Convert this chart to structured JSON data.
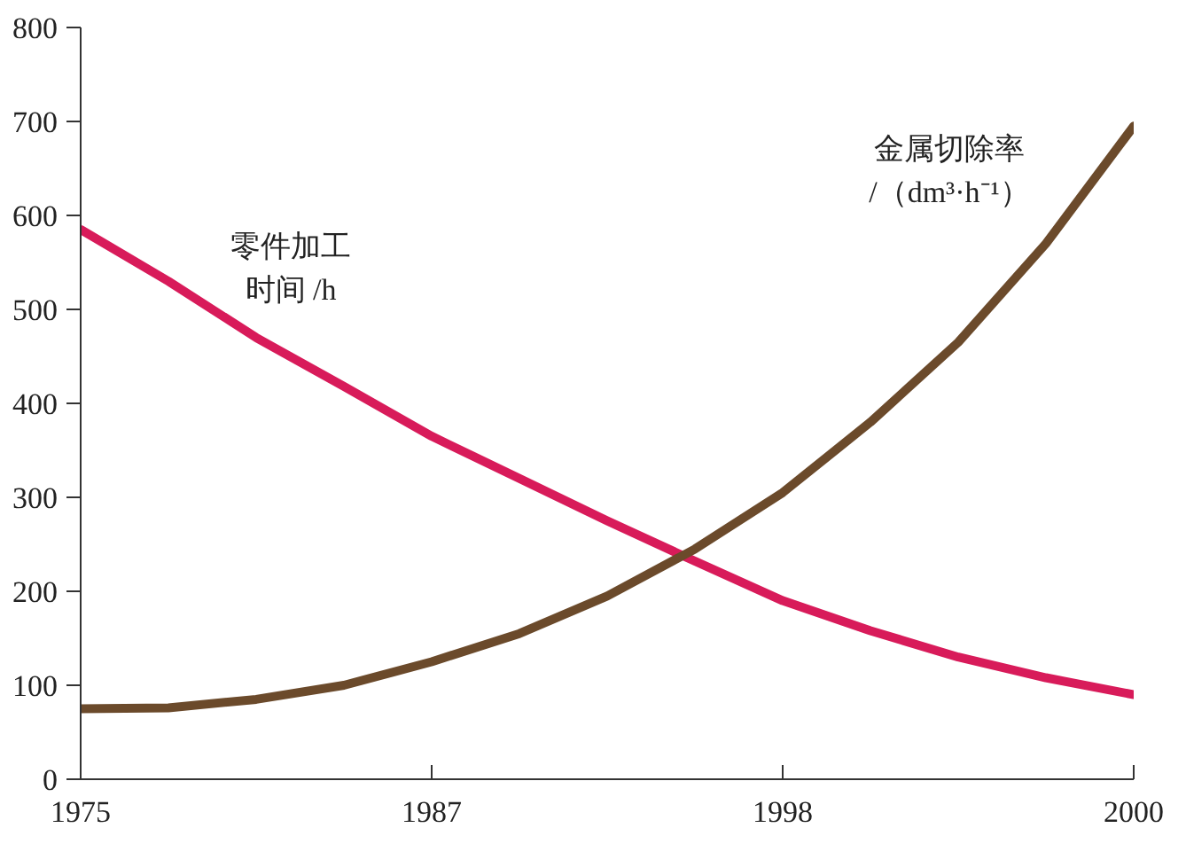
{
  "chart_data": {
    "type": "line",
    "categories": [
      "1975",
      null,
      null,
      null,
      "1987",
      null,
      null,
      null,
      "1998",
      null,
      null,
      null,
      "2000"
    ],
    "ylim": [
      0,
      800
    ],
    "yticks": [
      0,
      100,
      200,
      300,
      400,
      500,
      600,
      700,
      800
    ],
    "grid": false,
    "marker": "none",
    "line_style": "solid",
    "series": [
      {
        "name": "零件加工时间 /h",
        "color": "#d81b5a",
        "values": [
          585,
          530,
          470,
          418,
          365,
          320,
          275,
          232,
          190,
          158,
          130,
          108,
          90
        ]
      },
      {
        "name": "金属切除率/（dm³·h⁻¹）",
        "color": "#6b4a2b",
        "values": [
          75,
          76,
          85,
          100,
          125,
          155,
          195,
          245,
          305,
          380,
          465,
          570,
          695
        ]
      }
    ]
  }
}
